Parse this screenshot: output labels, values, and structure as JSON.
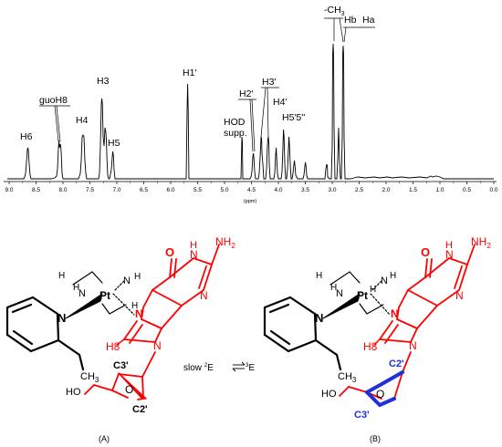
{
  "spectrum": {
    "axis_unit": "(ppm)",
    "ticks": [
      "9.0",
      "8.5",
      "8.0",
      "7.5",
      "7.0",
      "6.5",
      "6.0",
      "5.5",
      "5.0",
      "4.5",
      "4.0",
      "3.5",
      "3.0",
      "2.5",
      "2.0",
      "1.5",
      "1.0",
      "0.5",
      "0.0"
    ],
    "labels": {
      "h6": "H6",
      "guoh8": "guoH8",
      "h4": "H4",
      "h3": "H3",
      "h5": "H5",
      "h1p": "H1'",
      "hod": "HOD",
      "supp": "supp.",
      "h2p": "H2'",
      "h3p": "H3'",
      "h4p": "H4'",
      "h5p": "H5'5''",
      "ch3": "-CH",
      "ch3_sub": "3",
      "hb": "Hb",
      "ha": "Ha"
    }
  },
  "structure_a": {
    "caption": "(A)",
    "pt": "Pt",
    "n1": "N",
    "n2": "N",
    "n3": "N",
    "npy": "N",
    "h1": "H",
    "h2": "H",
    "h3": "H",
    "h4": "H",
    "o_carbonyl": "O",
    "nh_ring": "N",
    "nh_ring_h": "H",
    "nh2": "NH",
    "nh2_sub": "2",
    "n_ring2": "N",
    "n_ring3": "N",
    "n9": "N",
    "h8": "H8",
    "ch3": "CH",
    "ch3_sub": "3",
    "c3p": "C3'",
    "c2p": "C2'",
    "ho": "HO",
    "o_ring": "O"
  },
  "structure_b": {
    "caption": "(B)",
    "pt": "Pt",
    "n1": "N",
    "n2": "N",
    "n3": "N",
    "npy": "N",
    "h1": "H",
    "h2": "H",
    "h3": "H",
    "h4": "H",
    "o_carbonyl": "O",
    "nh_ring": "N",
    "nh_ring_h": "H",
    "nh2": "NH",
    "nh2_sub": "2",
    "n_ring2": "N",
    "n_ring3": "N",
    "n9": "N",
    "h8": "H8",
    "ch3": "CH",
    "ch3_sub": "3",
    "c3p": "C3'",
    "c2p": "C2'",
    "ho": "HO",
    "o_ring": "O"
  },
  "equilibrium": {
    "slow": "slow ",
    "sup2": "2",
    "e1": "E",
    "sup3": "3",
    "e2": "E"
  },
  "colors": {
    "black": "#000000",
    "red": "#ff0000",
    "blue": "#1f2fdc"
  }
}
